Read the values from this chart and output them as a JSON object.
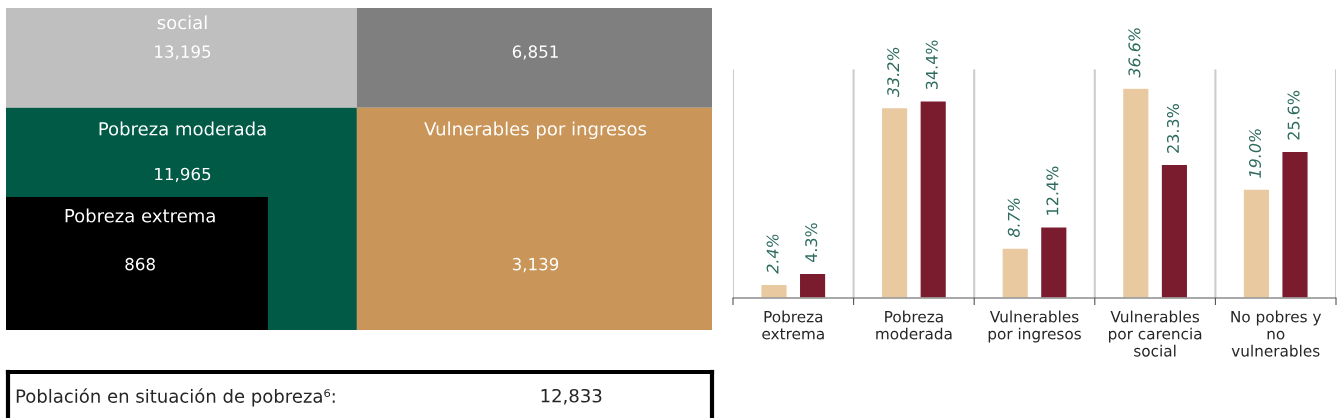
{
  "chart_data": [
    {
      "type": "other",
      "categories": [
        "social",
        null,
        "Pobreza moderada",
        "Vulnerables por ingresos",
        "Pobreza extrema"
      ],
      "value_labels": [
        "13,195",
        "6,851",
        "11,965",
        "3,139",
        "868"
      ],
      "colors": [
        "#bfbfbf",
        "#7f7f7f",
        "#005a46",
        "#c99558",
        "#000000"
      ],
      "annotations": [
        "Población en situación de pobreza⁶:",
        "12,833"
      ]
    },
    {
      "type": "bar",
      "categories": [
        "Pobreza\nextrema",
        "Pobreza\nmoderada",
        "Vulnerables\npor ingresos",
        "Vulnerables\npor carencia\nsocial",
        "No pobres y\nno\nvulnerables"
      ],
      "series": [
        {
          "color": "#e8c9a0",
          "values": [
            2.4,
            33.2,
            8.7,
            36.6,
            19.0
          ],
          "value_labels": [
            "2.4%",
            "33.2%",
            "8.7%",
            "36.6%",
            "19.0%"
          ]
        },
        {
          "color": "#7a1c2e",
          "values": [
            4.3,
            34.4,
            12.4,
            23.3,
            25.6
          ],
          "value_labels": [
            "4.3%",
            "34.4%",
            "12.4%",
            "23.3%",
            "25.6%"
          ]
        }
      ],
      "grid": "x",
      "legend": false
    }
  ]
}
